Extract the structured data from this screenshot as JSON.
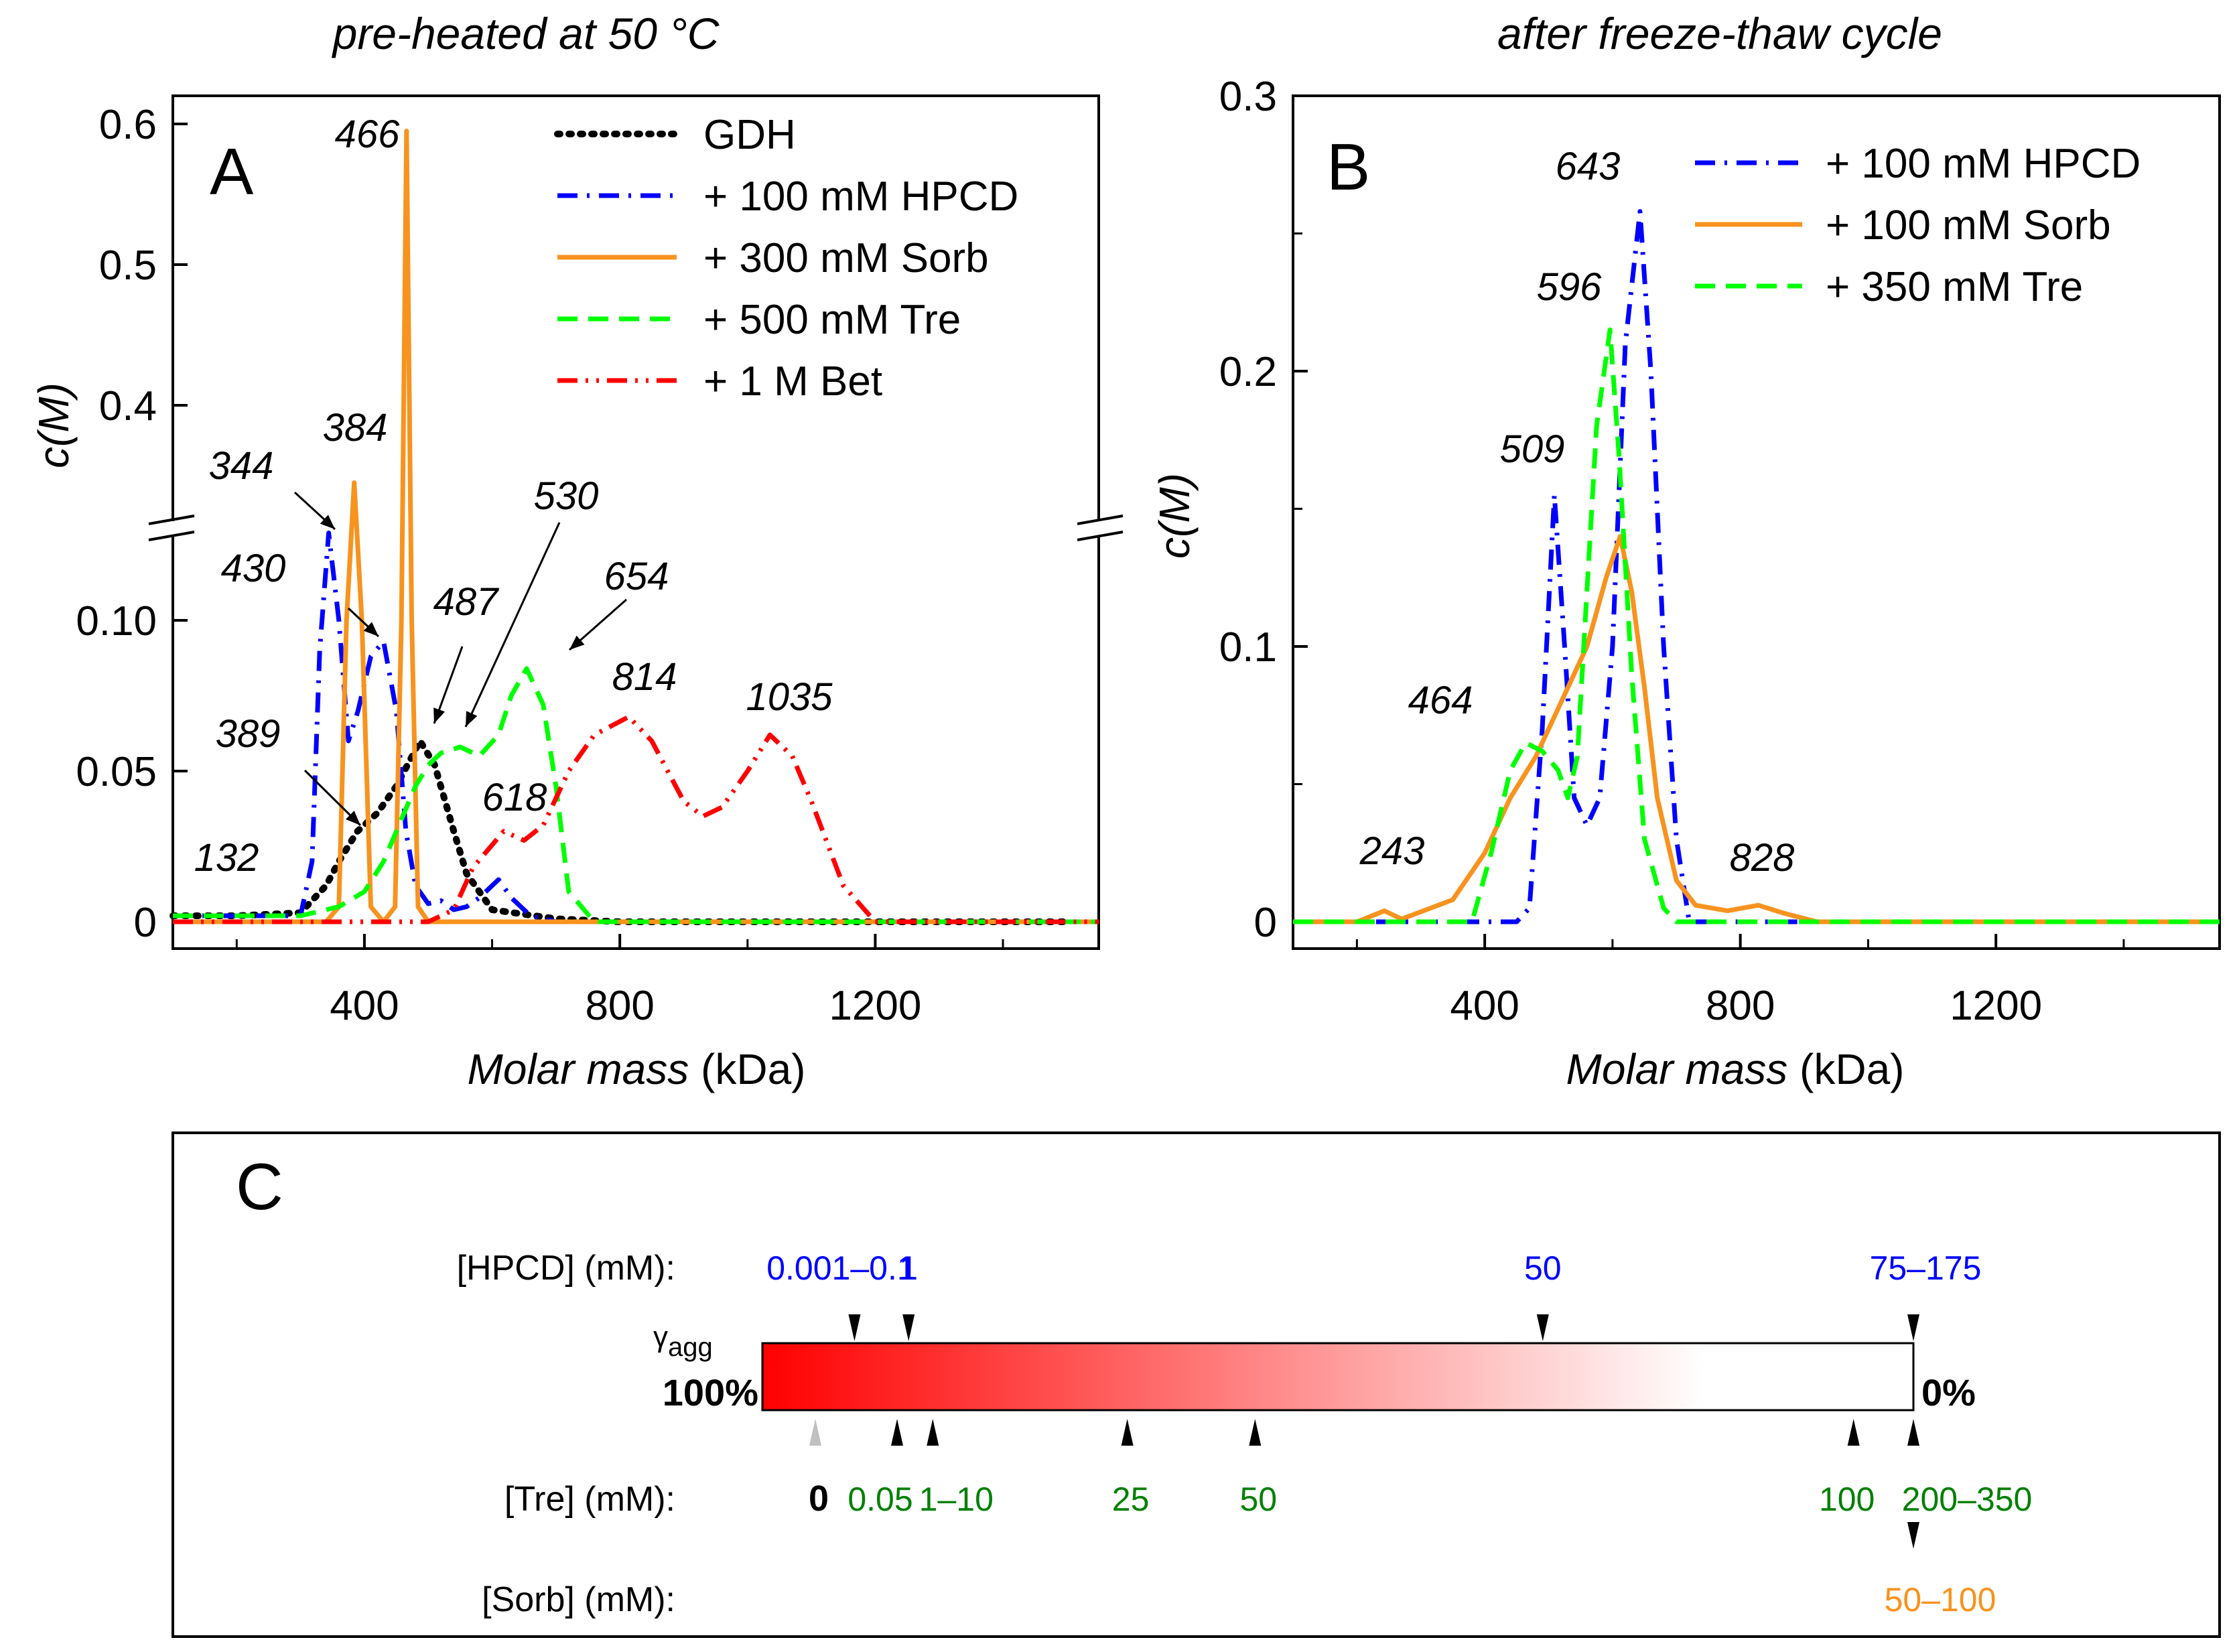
{
  "chart_data": [
    {
      "id": "A",
      "type": "line",
      "title": "pre-heated at 50 °C",
      "panel_label": "A",
      "xlabel_italic": "Molar mass",
      "xlabel_unit": " (kDa)",
      "ylabel_italic": "c(M)",
      "xlim": [
        100,
        1550
      ],
      "ylim_lower": [
        0,
        0.13
      ],
      "ylim_upper": [
        0.32,
        0.6
      ],
      "axis_break": true,
      "xticks": [
        400,
        800,
        1200
      ],
      "xtick_labels": [
        "400",
        "800",
        "1200"
      ],
      "yticks": [
        0,
        0.05,
        0.1,
        0.4,
        0.5,
        0.6
      ],
      "ytick_labels": [
        "0",
        "0.05",
        "0.10",
        "0.4",
        "0.5",
        "0.6"
      ],
      "legend_position": "top-right",
      "series": [
        {
          "name": "GDH",
          "color": "#000000",
          "style": "dot",
          "x": [
            100,
            200,
            300,
            340,
            360,
            389,
            420,
            450,
            470,
            487,
            510,
            540,
            560,
            600,
            700,
            800,
            1000,
            1500
          ],
          "y": [
            0.002,
            0.002,
            0.003,
            0.012,
            0.02,
            0.03,
            0.036,
            0.045,
            0.053,
            0.06,
            0.052,
            0.03,
            0.016,
            0.004,
            0.001,
            0,
            0,
            0
          ]
        },
        {
          "name": "+ 100 mM HPCD",
          "color": "#0000ff",
          "style": "dashdot",
          "x": [
            100,
            300,
            318,
            330,
            344,
            360,
            375,
            390,
            410,
            430,
            450,
            465,
            480,
            500,
            520,
            540,
            560,
            580,
            610,
            630,
            660,
            700,
            1000,
            1550
          ],
          "y": [
            0.002,
            0.002,
            0.02,
            0.09,
            0.129,
            0.1,
            0.06,
            0.07,
            0.088,
            0.093,
            0.07,
            0.03,
            0.012,
            0.006,
            0.007,
            0.004,
            0.005,
            0.008,
            0.014,
            0.008,
            0.002,
            0,
            0,
            0
          ]
        },
        {
          "name": "+ 300 mM Sorb",
          "color": "#f7931e",
          "style": "solid",
          "x": [
            100,
            340,
            360,
            372,
            384,
            396,
            410,
            430,
            448,
            458,
            466,
            474,
            484,
            500,
            1550
          ],
          "y": [
            0,
            0,
            0.005,
            0.1,
            0.345,
            0.1,
            0.005,
            0,
            0.005,
            0.1,
            0.595,
            0.1,
            0.005,
            0,
            0
          ]
        },
        {
          "name": "+ 500 mM Tre",
          "color": "#00ff00",
          "style": "dash",
          "x": [
            100,
            300,
            360,
            400,
            430,
            460,
            480,
            500,
            520,
            550,
            580,
            610,
            630,
            654,
            680,
            700,
            720,
            760,
            1550
          ],
          "y": [
            0.002,
            0.002,
            0.005,
            0.01,
            0.02,
            0.035,
            0.045,
            0.052,
            0.056,
            0.058,
            0.055,
            0.062,
            0.075,
            0.084,
            0.072,
            0.045,
            0.01,
            0,
            0
          ]
        },
        {
          "name": "+ 1 M Bet",
          "color": "#ff0000",
          "style": "dashdotdot",
          "x": [
            100,
            500,
            540,
            570,
            618,
            650,
            680,
            720,
            760,
            814,
            850,
            900,
            930,
            960,
            1000,
            1035,
            1070,
            1100,
            1150,
            1200,
            1550
          ],
          "y": [
            0,
            0,
            0.004,
            0.018,
            0.03,
            0.027,
            0.032,
            0.05,
            0.062,
            0.068,
            0.06,
            0.04,
            0.035,
            0.038,
            0.05,
            0.062,
            0.055,
            0.04,
            0.012,
            0,
            0
          ]
        }
      ],
      "annotations": [
        {
          "text": "466",
          "x": 466,
          "y": 0.595
        },
        {
          "text": "384",
          "x": 384,
          "y": 0.345
        },
        {
          "text": "344",
          "x": 344,
          "y": 0.129
        },
        {
          "text": "430",
          "x": 430,
          "y": 0.093
        },
        {
          "text": "487",
          "x": 487,
          "y": 0.06
        },
        {
          "text": "530",
          "x": 530,
          "y": 0.057
        },
        {
          "text": "654",
          "x": 654,
          "y": 0.084
        },
        {
          "text": "389",
          "x": 389,
          "y": 0.03
        },
        {
          "text": "618",
          "x": 618,
          "y": 0.03
        },
        {
          "text": "814",
          "x": 814,
          "y": 0.068
        },
        {
          "text": "1035",
          "x": 1035,
          "y": 0.062
        },
        {
          "text": "132",
          "x": 132,
          "y": 0.002
        }
      ]
    },
    {
      "id": "B",
      "type": "line",
      "title": "after freeze-thaw cycle",
      "panel_label": "B",
      "xlabel_italic": "Molar mass",
      "xlabel_unit": " (kDa)",
      "ylabel_italic": "c(M)",
      "xlim": [
        100,
        1550
      ],
      "ylim": [
        0,
        0.3
      ],
      "xticks": [
        400,
        800,
        1200
      ],
      "xtick_labels": [
        "400",
        "800",
        "1200"
      ],
      "yticks": [
        0,
        0.1,
        0.2,
        0.3
      ],
      "ytick_labels": [
        "0",
        "0.1",
        "0.2",
        "0.3"
      ],
      "legend_position": "top-right",
      "series": [
        {
          "name": "+ 100 mM HPCD",
          "color": "#0000ff",
          "style": "dashdot",
          "x": [
            100,
            450,
            470,
            490,
            509,
            525,
            540,
            560,
            580,
            600,
            620,
            643,
            660,
            680,
            700,
            720,
            1550
          ],
          "y": [
            0,
            0,
            0.005,
            0.07,
            0.155,
            0.1,
            0.045,
            0.035,
            0.045,
            0.1,
            0.21,
            0.258,
            0.2,
            0.1,
            0.03,
            0,
            0
          ]
        },
        {
          "name": "+ 100 mM Sorb",
          "color": "#f7931e",
          "style": "solid",
          "x": [
            100,
            200,
            243,
            270,
            350,
            400,
            440,
            480,
            520,
            560,
            590,
            612,
            630,
            650,
            670,
            700,
            730,
            780,
            828,
            870,
            920,
            1550
          ],
          "y": [
            0,
            0,
            0.004,
            0.001,
            0.008,
            0.025,
            0.045,
            0.06,
            0.08,
            0.1,
            0.125,
            0.14,
            0.12,
            0.085,
            0.045,
            0.015,
            0.006,
            0.004,
            0.006,
            0.003,
            0,
            0
          ]
        },
        {
          "name": "+ 350 mM Tre",
          "color": "#00ff00",
          "style": "dash",
          "x": [
            100,
            380,
            410,
            440,
            464,
            490,
            515,
            530,
            545,
            560,
            575,
            596,
            610,
            630,
            650,
            680,
            700,
            1550
          ],
          "y": [
            0,
            0,
            0.025,
            0.055,
            0.065,
            0.062,
            0.055,
            0.045,
            0.06,
            0.12,
            0.18,
            0.215,
            0.17,
            0.09,
            0.03,
            0.005,
            0,
            0
          ]
        }
      ],
      "annotations": [
        {
          "text": "643",
          "x": 643,
          "y": 0.258
        },
        {
          "text": "596",
          "x": 596,
          "y": 0.215
        },
        {
          "text": "509",
          "x": 509,
          "y": 0.155
        },
        {
          "text": "464",
          "x": 464,
          "y": 0.065
        },
        {
          "text": "243",
          "x": 243,
          "y": 0.004
        },
        {
          "text": "828",
          "x": 828,
          "y": 0.006
        }
      ]
    },
    {
      "id": "C",
      "type": "other",
      "panel_label": "C",
      "description_label": "γagg",
      "gamma_symbol": "γ",
      "gamma_subscript": "agg",
      "scale_left_label": "100%",
      "scale_right_label": "0%",
      "gradient_colors": [
        "#ff0000",
        "#ffffff"
      ],
      "gradient_white_from": 0.82,
      "rows": [
        {
          "label": "[HPCD] (mM):",
          "color": "#0000ff",
          "markers": [
            {
              "label": "0.001–0.1",
              "pos": 0.08
            },
            {
              "label": "1",
              "pos": 0.127
            },
            {
              "label": "50",
              "pos": 0.678
            },
            {
              "label": "75–175",
              "pos": 1.0
            }
          ]
        },
        {
          "label": "[Tre] (mM):",
          "color": "#008000",
          "markers": [
            {
              "label": "0",
              "pos": 0.046,
              "color": "#000000",
              "bold": true,
              "marker_color": "#c0c0c0"
            },
            {
              "label": "0.05",
              "pos": 0.117
            },
            {
              "label": "1–10",
              "pos": 0.148
            },
            {
              "label": "25",
              "pos": 0.317
            },
            {
              "label": "50",
              "pos": 0.428
            },
            {
              "label": "100",
              "pos": 0.948
            },
            {
              "label": "200–350",
              "pos": 1.0
            }
          ]
        },
        {
          "label": "[Sorb] (mM):",
          "color": "#f7931e",
          "markers": [
            {
              "label": "50–100",
              "pos": 1.0
            }
          ]
        }
      ]
    }
  ]
}
